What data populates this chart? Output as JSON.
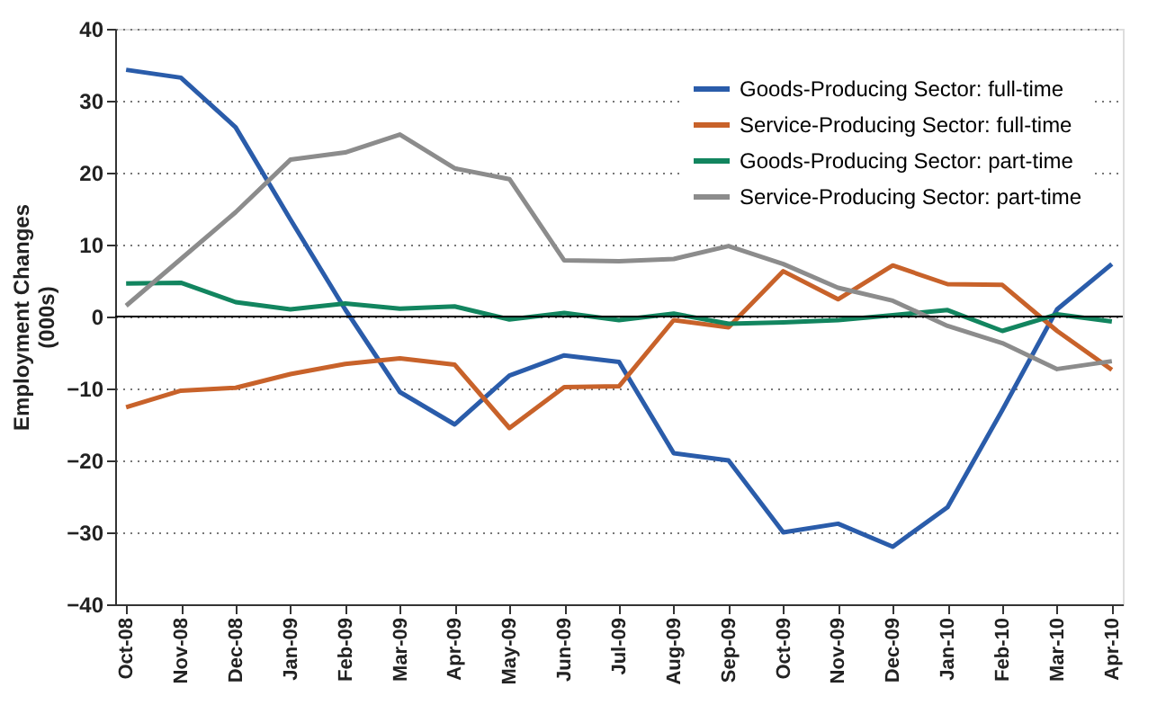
{
  "chart_data": {
    "type": "line",
    "ylabel": "Employment Changes\n(000s)",
    "categories": [
      "Oct-08",
      "Nov-08",
      "Dec-08",
      "Jan-09",
      "Feb-09",
      "Mar-09",
      "Apr-09",
      "May-09",
      "Jun-09",
      "Jul-09",
      "Aug-09",
      "Sep-09",
      "Oct-09",
      "Nov-09",
      "Dec-09",
      "Jan-10",
      "Feb-10",
      "Mar-10",
      "Apr-10"
    ],
    "series": [
      {
        "name": "Goods-Producing Sector: full-time",
        "color": "#2a5caa",
        "values": [
          34.3,
          33.2,
          26.3,
          13.5,
          1,
          -10.5,
          -15,
          -8.2,
          -5.4,
          -6.3,
          -19,
          -20,
          -30,
          -28.8,
          -32,
          -26.5,
          -13,
          1,
          7.3
        ]
      },
      {
        "name": "Service-Producing Sector: full-time",
        "color": "#c8622a",
        "values": [
          -12.6,
          -10.3,
          -9.9,
          -8,
          -6.6,
          -5.8,
          -6.7,
          -15.5,
          -9.8,
          -9.7,
          -0.5,
          -1.5,
          6.3,
          2.4,
          7.1,
          4.5,
          4.4,
          -2,
          -7.4
        ]
      },
      {
        "name": "Goods-Producing Sector: part-time",
        "color": "#12855f",
        "values": [
          4.6,
          4.7,
          2,
          1,
          1.8,
          1.1,
          1.4,
          -0.4,
          0.5,
          -0.5,
          0.4,
          -1,
          -0.8,
          -0.5,
          0.2,
          0.9,
          -2,
          0.3,
          -0.7
        ]
      },
      {
        "name": "Service-Producing Sector: part-time",
        "color": "#8c8c8c",
        "values": [
          1.5,
          8,
          14.5,
          21.8,
          22.8,
          25.3,
          20.6,
          19.1,
          7.8,
          7.7,
          8,
          9.8,
          7.3,
          4,
          2.2,
          -1.3,
          -3.7,
          -7.3,
          -6.2
        ]
      }
    ],
    "ylim": [
      -40,
      40
    ],
    "yticks": [
      -40,
      -30,
      -20,
      -10,
      0,
      10,
      20,
      30,
      40
    ],
    "grid": "y",
    "legend": "top right",
    "marker": "none",
    "line_style": "solid",
    "ref_lines": [
      {
        "axis": "y",
        "value": 0,
        "color": "#000000"
      }
    ]
  }
}
